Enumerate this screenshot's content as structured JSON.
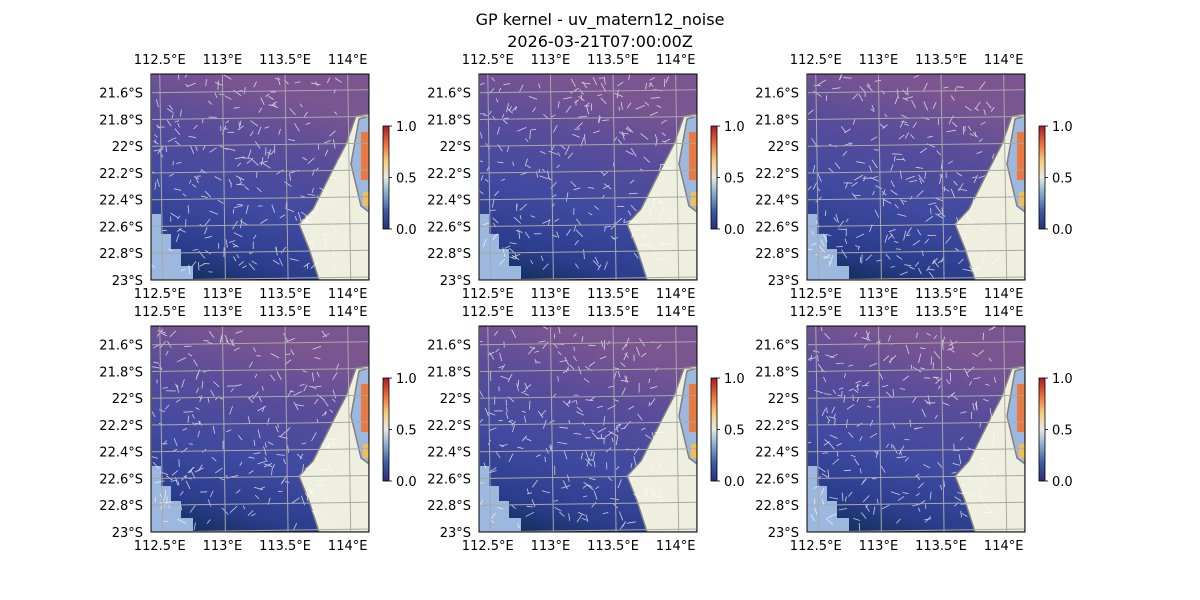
{
  "figure": {
    "title_line1": "GP kernel - uv_matern12_noise",
    "title_line2": "2026-03-21T07:00:00Z"
  },
  "colors": {
    "ocean": "#9cb8df",
    "land": "#efefdf",
    "coast": "#808080",
    "grid": "#a8a8a8",
    "arrows": "#ffffff",
    "colormap": [
      "#2c2f7d",
      "#3b59a3",
      "#7ea6cc",
      "#e6ebe3",
      "#f8c97a",
      "#ea6a3a",
      "#b01a2a"
    ],
    "field_shading": [
      "#0b2b4e",
      "#2c3d8d",
      "#3f4aa0",
      "#5a4c9a",
      "#7b5590"
    ]
  },
  "chart_data": {
    "type": "heatmap",
    "description_of_field": "gridded field with vector arrows, six identical-style map panels",
    "lon_ticks": [
      "112.5°E",
      "113°E",
      "113.5°E",
      "114°E"
    ],
    "lat_ticks": [
      "21.6°S",
      "21.8°S",
      "22°S",
      "22.2°S",
      "22.4°S",
      "22.6°S",
      "22.8°S",
      "23°S"
    ],
    "lon_values": [
      112.5,
      113.0,
      113.5,
      114.0
    ],
    "lat_values": [
      -21.6,
      -21.8,
      -22.0,
      -22.2,
      -22.4,
      -22.6,
      -22.8,
      -23.0
    ],
    "xlim": [
      112.43,
      114.17
    ],
    "ylim": [
      -23.0,
      -21.46
    ],
    "colorbar": {
      "min": 0.0,
      "max": 1.0,
      "ticks": [
        "0.0",
        "0.5",
        "1.0"
      ]
    },
    "panels": [
      {
        "row": 0,
        "col": 0
      },
      {
        "row": 0,
        "col": 1
      },
      {
        "row": 0,
        "col": 2
      },
      {
        "row": 1,
        "col": 0
      },
      {
        "row": 1,
        "col": 1
      },
      {
        "row": 1,
        "col": 2
      }
    ]
  }
}
